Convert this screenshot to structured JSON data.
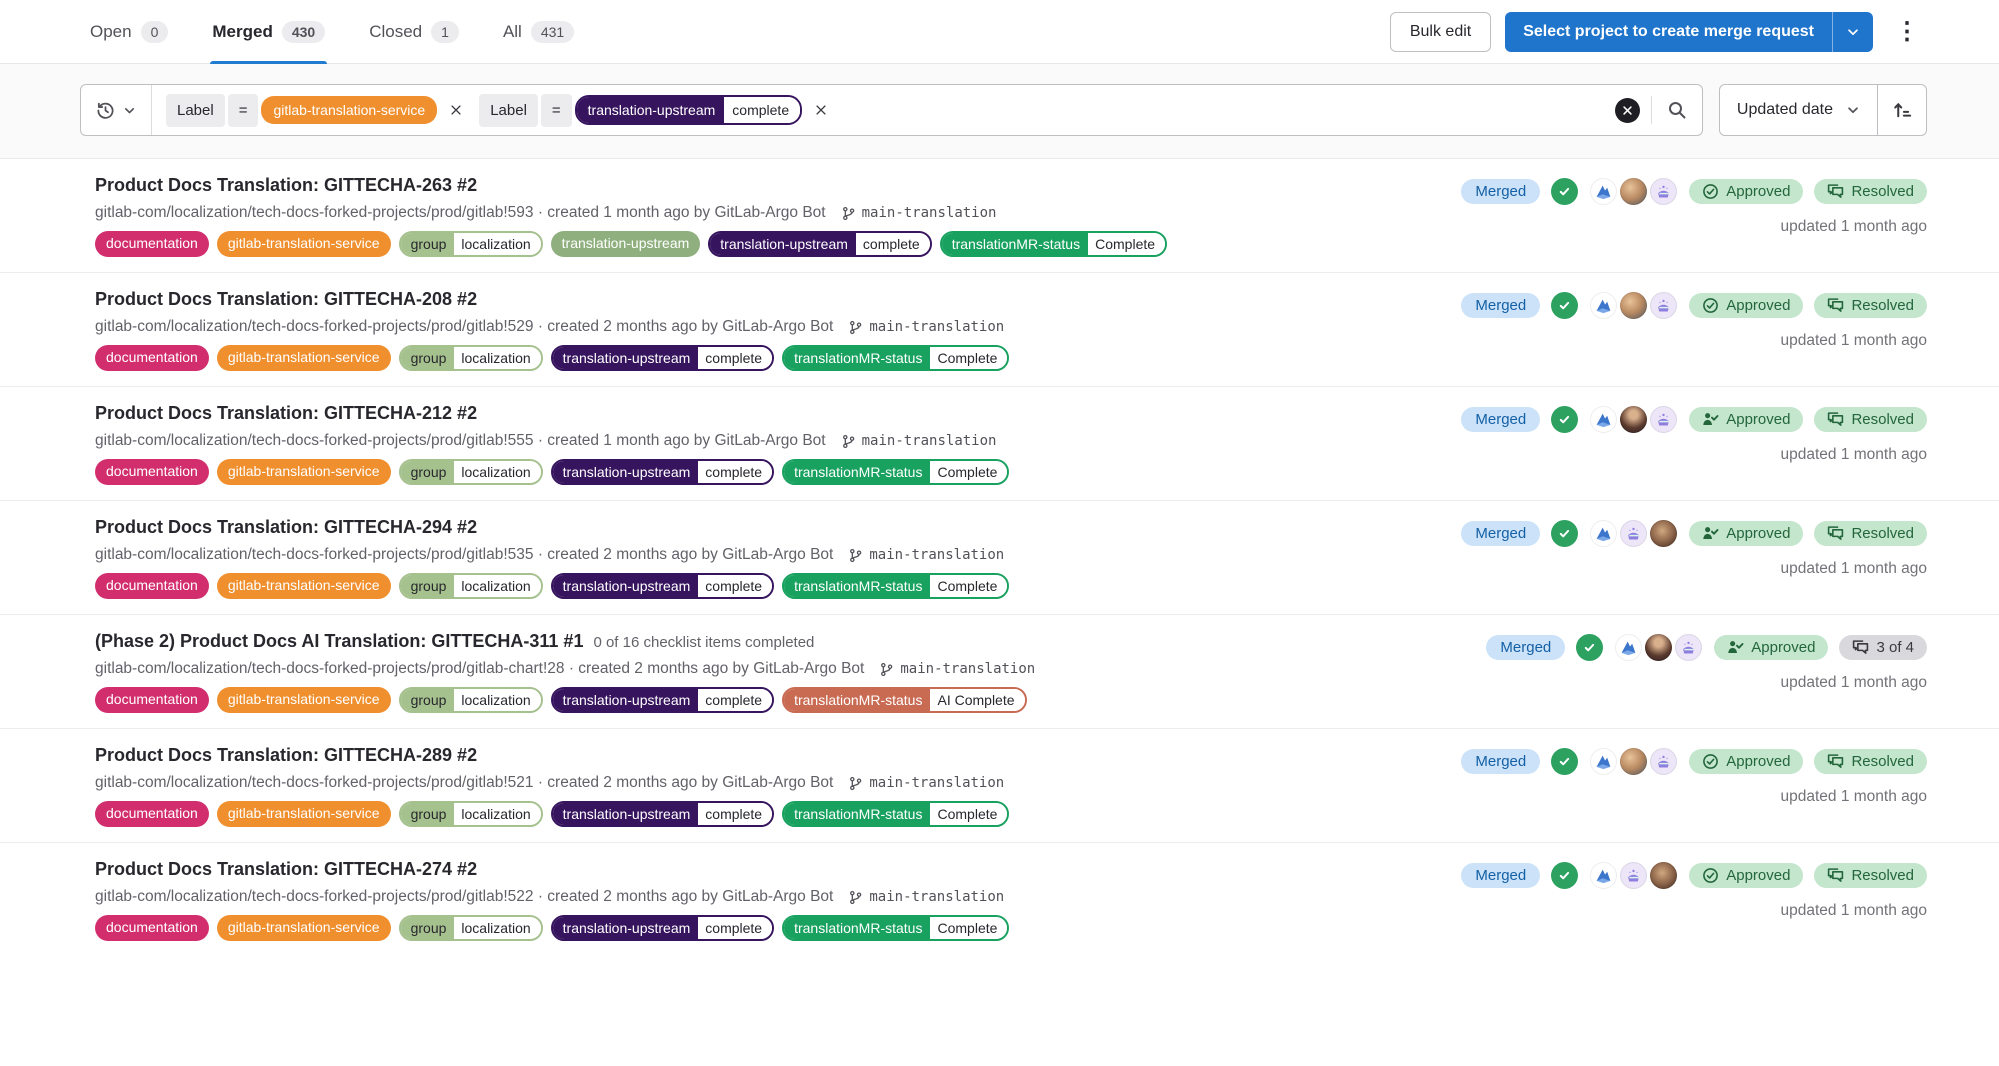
{
  "tabs": [
    {
      "label": "Open",
      "count": "0",
      "active": false
    },
    {
      "label": "Merged",
      "count": "430",
      "active": true
    },
    {
      "label": "Closed",
      "count": "1",
      "active": false
    },
    {
      "label": "All",
      "count": "431",
      "active": false
    }
  ],
  "actions": {
    "bulk_edit": "Bulk edit",
    "create_mr": "Select project to create merge request"
  },
  "filter": {
    "tokens": [
      {
        "key": "Label",
        "operator": "=",
        "label": {
          "type": "solid",
          "text": "gitlab-translation-service",
          "bg": "#ef8f2e",
          "fg": "#ffffff"
        }
      },
      {
        "key": "Label",
        "operator": "=",
        "label": {
          "type": "scoped",
          "key": "translation-upstream",
          "value": "complete",
          "bg": "#36145e",
          "fg": "#ffffff"
        }
      }
    ],
    "sort_field": "Updated date"
  },
  "colors": {
    "accent_blue": "#1f75cb",
    "merged_badge_bg": "#cbe2f9",
    "success_pill_bg": "#c3e6cd",
    "pipeline_success": "#2da160"
  },
  "merge_requests": [
    {
      "title": "Product Docs Translation: GITTECHA-263 #2",
      "note": "",
      "reference": "gitlab-com/localization/tech-docs-forked-projects/prod/gitlab!593",
      "created": "created 1 month ago by GitLab-Argo Bot",
      "branch": "main-translation",
      "status": "Merged",
      "approved": "Approved",
      "approved_icon": "circle-check",
      "discussions": "Resolved",
      "discussions_variant": "success",
      "updated": "updated 1 month ago",
      "avatars": [
        "gitlab-logo",
        "man",
        "purple"
      ],
      "labels": [
        {
          "type": "solid",
          "text": "documentation",
          "bg": "#d22e6d",
          "fg": "#ffffff"
        },
        {
          "type": "solid",
          "text": "gitlab-translation-service",
          "bg": "#ef8f2e",
          "fg": "#ffffff"
        },
        {
          "type": "scoped",
          "key": "group",
          "value": "localization",
          "bg": "#a5c18e",
          "fg": "#28272d"
        },
        {
          "type": "solid",
          "text": "translation-upstream",
          "bg": "#8faf7e",
          "fg": "#ffffff"
        },
        {
          "type": "scoped",
          "key": "translation-upstream",
          "value": "complete",
          "bg": "#36145e",
          "fg": "#ffffff"
        },
        {
          "type": "scoped",
          "key": "translationMR-status",
          "value": "Complete",
          "bg": "#18a15f",
          "fg": "#ffffff"
        }
      ]
    },
    {
      "title": "Product Docs Translation: GITTECHA-208 #2",
      "note": "",
      "reference": "gitlab-com/localization/tech-docs-forked-projects/prod/gitlab!529",
      "created": "created 2 months ago by GitLab-Argo Bot",
      "branch": "main-translation",
      "status": "Merged",
      "approved": "Approved",
      "approved_icon": "circle-check",
      "discussions": "Resolved",
      "discussions_variant": "success",
      "updated": "updated 1 month ago",
      "avatars": [
        "gitlab-logo",
        "man",
        "purple"
      ],
      "labels": [
        {
          "type": "solid",
          "text": "documentation",
          "bg": "#d22e6d",
          "fg": "#ffffff"
        },
        {
          "type": "solid",
          "text": "gitlab-translation-service",
          "bg": "#ef8f2e",
          "fg": "#ffffff"
        },
        {
          "type": "scoped",
          "key": "group",
          "value": "localization",
          "bg": "#a5c18e",
          "fg": "#28272d"
        },
        {
          "type": "scoped",
          "key": "translation-upstream",
          "value": "complete",
          "bg": "#36145e",
          "fg": "#ffffff"
        },
        {
          "type": "scoped",
          "key": "translationMR-status",
          "value": "Complete",
          "bg": "#18a15f",
          "fg": "#ffffff"
        }
      ]
    },
    {
      "title": "Product Docs Translation: GITTECHA-212 #2",
      "note": "",
      "reference": "gitlab-com/localization/tech-docs-forked-projects/prod/gitlab!555",
      "created": "created 1 month ago by GitLab-Argo Bot",
      "branch": "main-translation",
      "status": "Merged",
      "approved": "Approved",
      "approved_icon": "person-check",
      "discussions": "Resolved",
      "discussions_variant": "success",
      "updated": "updated 1 month ago",
      "avatars": [
        "gitlab-logo",
        "woman",
        "purple"
      ],
      "labels": [
        {
          "type": "solid",
          "text": "documentation",
          "bg": "#d22e6d",
          "fg": "#ffffff"
        },
        {
          "type": "solid",
          "text": "gitlab-translation-service",
          "bg": "#ef8f2e",
          "fg": "#ffffff"
        },
        {
          "type": "scoped",
          "key": "group",
          "value": "localization",
          "bg": "#a5c18e",
          "fg": "#28272d"
        },
        {
          "type": "scoped",
          "key": "translation-upstream",
          "value": "complete",
          "bg": "#36145e",
          "fg": "#ffffff"
        },
        {
          "type": "scoped",
          "key": "translationMR-status",
          "value": "Complete",
          "bg": "#18a15f",
          "fg": "#ffffff"
        }
      ]
    },
    {
      "title": "Product Docs Translation: GITTECHA-294 #2",
      "note": "",
      "reference": "gitlab-com/localization/tech-docs-forked-projects/prod/gitlab!535",
      "created": "created 2 months ago by GitLab-Argo Bot",
      "branch": "main-translation",
      "status": "Merged",
      "approved": "Approved",
      "approved_icon": "person-check",
      "discussions": "Resolved",
      "discussions_variant": "success",
      "updated": "updated 1 month ago",
      "avatars": [
        "gitlab-logo",
        "purple",
        "woman2"
      ],
      "labels": [
        {
          "type": "solid",
          "text": "documentation",
          "bg": "#d22e6d",
          "fg": "#ffffff"
        },
        {
          "type": "solid",
          "text": "gitlab-translation-service",
          "bg": "#ef8f2e",
          "fg": "#ffffff"
        },
        {
          "type": "scoped",
          "key": "group",
          "value": "localization",
          "bg": "#a5c18e",
          "fg": "#28272d"
        },
        {
          "type": "scoped",
          "key": "translation-upstream",
          "value": "complete",
          "bg": "#36145e",
          "fg": "#ffffff"
        },
        {
          "type": "scoped",
          "key": "translationMR-status",
          "value": "Complete",
          "bg": "#18a15f",
          "fg": "#ffffff"
        }
      ]
    },
    {
      "title": "(Phase 2) Product Docs AI Translation: GITTECHA-311 #1",
      "note": "0 of 16 checklist items completed",
      "reference": "gitlab-com/localization/tech-docs-forked-projects/prod/gitlab-chart!28",
      "created": "created 2 months ago by GitLab-Argo Bot",
      "branch": "main-translation",
      "status": "Merged",
      "approved": "Approved",
      "approved_icon": "person-check",
      "discussions": "3 of 4",
      "discussions_variant": "neutral",
      "updated": "updated 1 month ago",
      "avatars": [
        "gitlab-logo",
        "woman",
        "purple"
      ],
      "labels": [
        {
          "type": "solid",
          "text": "documentation",
          "bg": "#d22e6d",
          "fg": "#ffffff"
        },
        {
          "type": "solid",
          "text": "gitlab-translation-service",
          "bg": "#ef8f2e",
          "fg": "#ffffff"
        },
        {
          "type": "scoped",
          "key": "group",
          "value": "localization",
          "bg": "#a5c18e",
          "fg": "#28272d"
        },
        {
          "type": "scoped",
          "key": "translation-upstream",
          "value": "complete",
          "bg": "#36145e",
          "fg": "#ffffff"
        },
        {
          "type": "scoped",
          "key": "translationMR-status",
          "value": "AI Complete",
          "bg": "#c96a52",
          "fg": "#ffffff"
        }
      ]
    },
    {
      "title": "Product Docs Translation: GITTECHA-289 #2",
      "note": "",
      "reference": "gitlab-com/localization/tech-docs-forked-projects/prod/gitlab!521",
      "created": "created 2 months ago by GitLab-Argo Bot",
      "branch": "main-translation",
      "status": "Merged",
      "approved": "Approved",
      "approved_icon": "circle-check",
      "discussions": "Resolved",
      "discussions_variant": "success",
      "updated": "updated 1 month ago",
      "avatars": [
        "gitlab-logo",
        "man",
        "purple"
      ],
      "labels": [
        {
          "type": "solid",
          "text": "documentation",
          "bg": "#d22e6d",
          "fg": "#ffffff"
        },
        {
          "type": "solid",
          "text": "gitlab-translation-service",
          "bg": "#ef8f2e",
          "fg": "#ffffff"
        },
        {
          "type": "scoped",
          "key": "group",
          "value": "localization",
          "bg": "#a5c18e",
          "fg": "#28272d"
        },
        {
          "type": "scoped",
          "key": "translation-upstream",
          "value": "complete",
          "bg": "#36145e",
          "fg": "#ffffff"
        },
        {
          "type": "scoped",
          "key": "translationMR-status",
          "value": "Complete",
          "bg": "#18a15f",
          "fg": "#ffffff"
        }
      ]
    },
    {
      "title": "Product Docs Translation: GITTECHA-274 #2",
      "note": "",
      "reference": "gitlab-com/localization/tech-docs-forked-projects/prod/gitlab!522",
      "created": "created 2 months ago by GitLab-Argo Bot",
      "branch": "main-translation",
      "status": "Merged",
      "approved": "Approved",
      "approved_icon": "circle-check",
      "discussions": "Resolved",
      "discussions_variant": "success",
      "updated": "updated 1 month ago",
      "avatars": [
        "gitlab-logo",
        "purple",
        "woman2"
      ],
      "labels": [
        {
          "type": "solid",
          "text": "documentation",
          "bg": "#d22e6d",
          "fg": "#ffffff"
        },
        {
          "type": "solid",
          "text": "gitlab-translation-service",
          "bg": "#ef8f2e",
          "fg": "#ffffff"
        },
        {
          "type": "scoped",
          "key": "group",
          "value": "localization",
          "bg": "#a5c18e",
          "fg": "#28272d"
        },
        {
          "type": "scoped",
          "key": "translation-upstream",
          "value": "complete",
          "bg": "#36145e",
          "fg": "#ffffff"
        },
        {
          "type": "scoped",
          "key": "translationMR-status",
          "value": "Complete",
          "bg": "#18a15f",
          "fg": "#ffffff"
        }
      ]
    }
  ]
}
